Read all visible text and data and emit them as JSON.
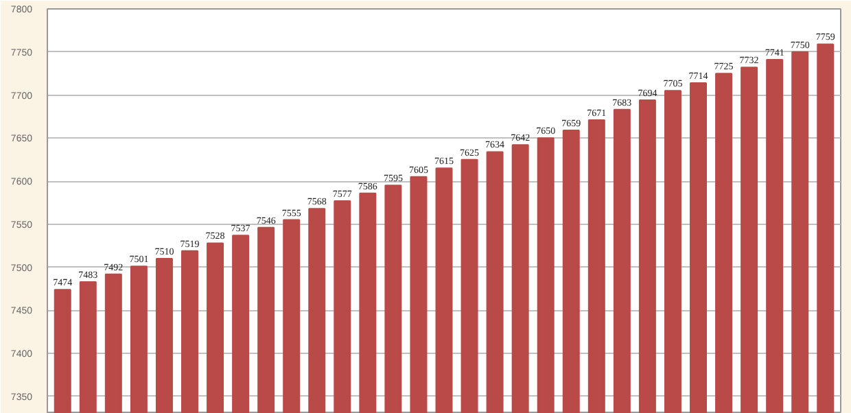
{
  "chart_data": {
    "type": "bar",
    "categories": [
      null,
      null,
      null,
      null,
      null,
      null,
      null,
      null,
      null,
      null,
      null,
      null,
      null,
      null,
      null,
      null,
      null,
      null,
      null,
      null,
      null,
      null,
      null,
      null,
      null,
      null,
      null,
      null,
      null,
      null,
      null
    ],
    "values": [
      7474,
      7483,
      7492,
      7501,
      7510,
      7519,
      7528,
      7537,
      7546,
      7555,
      7568,
      7577,
      7586,
      7595,
      7605,
      7615,
      7625,
      7634,
      7642,
      7650,
      7659,
      7671,
      7683,
      7694,
      7705,
      7714,
      7725,
      7732,
      7741,
      7750,
      7759
    ],
    "color": "#b94a48",
    "ylim": [
      7330,
      7800
    ],
    "yticks": [
      7350,
      7400,
      7450,
      7500,
      7550,
      7600,
      7650,
      7700,
      7750,
      7800
    ],
    "grid": "y",
    "data_labels": true
  }
}
